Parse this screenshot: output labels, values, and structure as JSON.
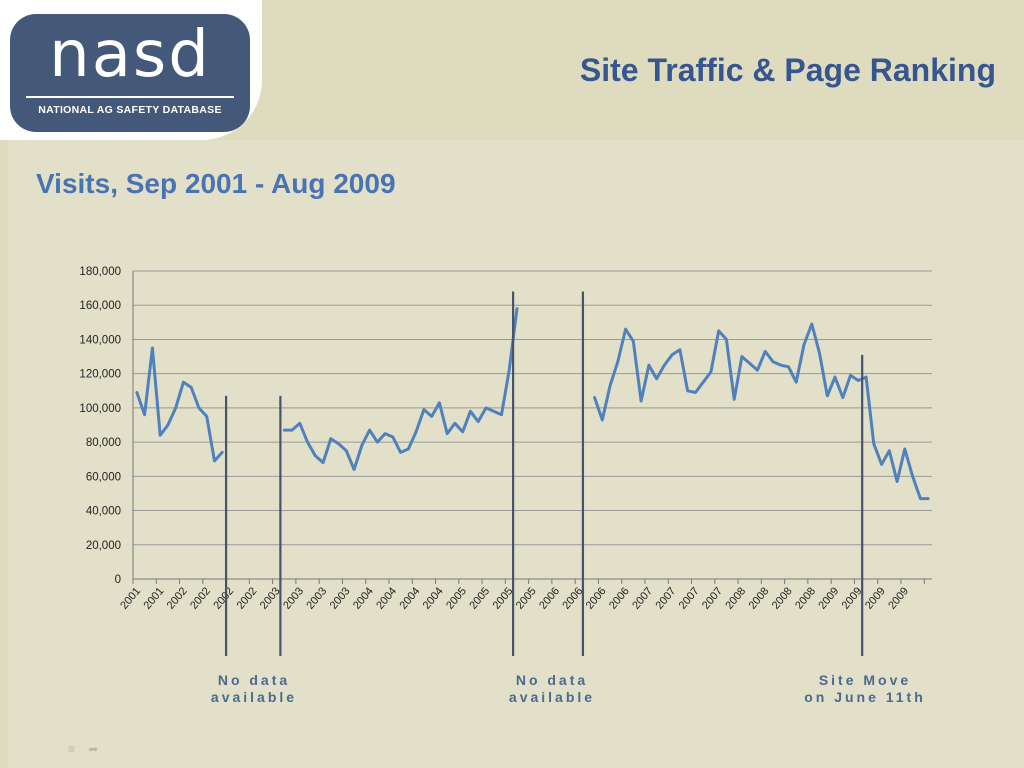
{
  "header": {
    "logo_word": "nasd",
    "logo_subtitle": "NATIONAL AG SAFETY DATABASE",
    "title": "Site Traffic & Page Ranking",
    "subtitle": "Visits, Sep 2001 - Aug 2009"
  },
  "notes": {
    "no_data_1": [
      "No data",
      "available"
    ],
    "no_data_2": [
      "No data",
      "available"
    ],
    "site_move": [
      "Site Move",
      "on June 11th"
    ]
  },
  "nav": {
    "menu_icon": "menu-icon",
    "next_icon": "arrow-right-icon"
  },
  "colors": {
    "line": "#4f81bd",
    "marker": "#44546a",
    "grid": "#9a9a9a",
    "title": "#37568f",
    "subtitle": "#4a73b3"
  },
  "chart_data": {
    "type": "line",
    "title": "",
    "xlabel": "",
    "ylabel": "",
    "ylim": [
      0,
      180000
    ],
    "yticks": [
      "0",
      "20,000",
      "40,000",
      "60,000",
      "80,000",
      "100,000",
      "120,000",
      "140,000",
      "160,000",
      "180,000"
    ],
    "x_tick_labels": [
      "2001",
      "2001",
      "2002",
      "2002",
      "2002",
      "2002",
      "2003",
      "2003",
      "2003",
      "2003",
      "2004",
      "2004",
      "2004",
      "2004",
      "2005",
      "2005",
      "2005",
      "2005",
      "2006",
      "2006",
      "2006",
      "2006",
      "2007",
      "2007",
      "2007",
      "2007",
      "2008",
      "2008",
      "2008",
      "2008",
      "2009",
      "2009",
      "2009",
      "2009"
    ],
    "grid": true,
    "legend": "none",
    "series": [
      {
        "segments": [
          {
            "start_index": 0,
            "values": [
              109000,
              96000,
              135000,
              84000,
              90000,
              100000,
              115000,
              112000,
              100000,
              95000,
              69000,
              74000
            ]
          },
          {
            "start_index": 19,
            "values": [
              87000,
              87000,
              91000,
              80000,
              72000,
              68000,
              82000,
              79000,
              75000,
              64000,
              78000,
              87000,
              80000,
              85000,
              83000,
              74000,
              76000,
              86000,
              99000,
              95000,
              103000,
              85000,
              91000,
              86000,
              98000,
              92000,
              100000,
              98000,
              96000,
              122000,
              158000
            ]
          },
          {
            "start_index": 59,
            "values": [
              106000,
              93000,
              113000,
              127000,
              146000,
              139000,
              104000,
              125000,
              117000,
              125000,
              131000,
              134000,
              110000,
              109000,
              115000,
              121000,
              145000,
              140000,
              105000,
              130000,
              126000,
              122000,
              133000,
              127000,
              125000,
              124000,
              115000,
              137000,
              149000,
              132000,
              107000,
              118000,
              106000,
              119000,
              116000,
              118000,
              79000,
              67000,
              75000,
              57000,
              76000,
              60000,
              47000,
              47000
            ]
          }
        ]
      }
    ],
    "markers": [
      {
        "index": 11.5,
        "top_value": 107000
      },
      {
        "index": 18.5,
        "top_value": 107000
      },
      {
        "index": 48.5,
        "top_value": 168000
      },
      {
        "index": 57.5,
        "top_value": 168000
      },
      {
        "index": 93.5,
        "top_value": 131000
      }
    ]
  }
}
